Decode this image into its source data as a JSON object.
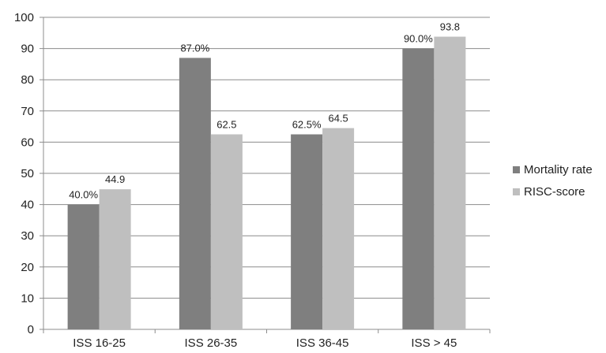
{
  "chart_data": {
    "type": "bar",
    "categories": [
      "ISS 16-25",
      "ISS 26-35",
      "ISS 36-45",
      "ISS > 45"
    ],
    "series": [
      {
        "name": "Mortality rate",
        "values": [
          40.0,
          87.0,
          62.5,
          90.0
        ],
        "labels": [
          "40.0%",
          "87.0%",
          "62.5%",
          "90.0%"
        ],
        "color": "#7f7f7f"
      },
      {
        "name": "RISC-score",
        "values": [
          44.9,
          62.5,
          64.5,
          93.8
        ],
        "labels": [
          "44.9",
          "62.5",
          "64.5",
          "93.8"
        ],
        "color": "#bfbfbf"
      }
    ],
    "yticks": [
      0,
      10,
      20,
      30,
      40,
      50,
      60,
      70,
      80,
      90,
      100
    ],
    "ylim": [
      0,
      100
    ],
    "grid": true,
    "legend_position": "right"
  }
}
